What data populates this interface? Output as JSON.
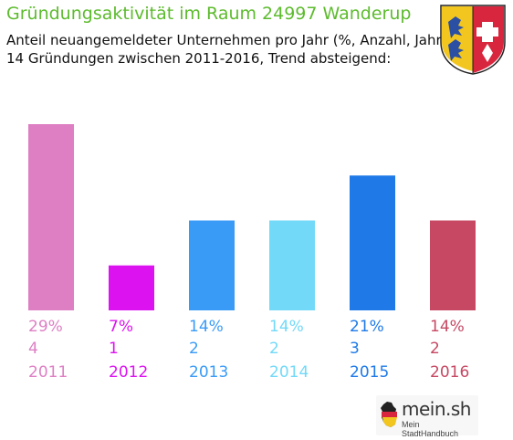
{
  "header": {
    "title": "Gründungsaktivität im Raum 24997 Wanderup",
    "subtitle_line1": "Anteil neuangemeldeter Unternehmen pro Jahr (%, Anzahl, Jahr)",
    "subtitle_line2": "14 Gründungen zwischen 2011-2016, Trend absteigend:"
  },
  "colors": {
    "title": "#5dbb2e"
  },
  "crest_icon": "coat-of-arms-icon",
  "logo": {
    "name": "mein.sh",
    "tagline": "Mein StadtHandbuch",
    "icon": "germany-map-icon"
  },
  "chart_data": {
    "type": "bar",
    "categories": [
      "2011",
      "2012",
      "2013",
      "2014",
      "2015",
      "2016"
    ],
    "values": [
      29,
      7,
      14,
      14,
      21,
      14
    ],
    "percent_labels": [
      "29%",
      "7%",
      "14%",
      "14%",
      "21%",
      "14%"
    ],
    "counts": [
      4,
      1,
      2,
      2,
      3,
      2
    ],
    "colors": [
      "#de7fc4",
      "#dc13f0",
      "#3a9bf7",
      "#72d9f8",
      "#1f7ae8",
      "#c64863"
    ],
    "ylim": [
      0,
      29
    ],
    "grid": false,
    "legend": "none"
  }
}
